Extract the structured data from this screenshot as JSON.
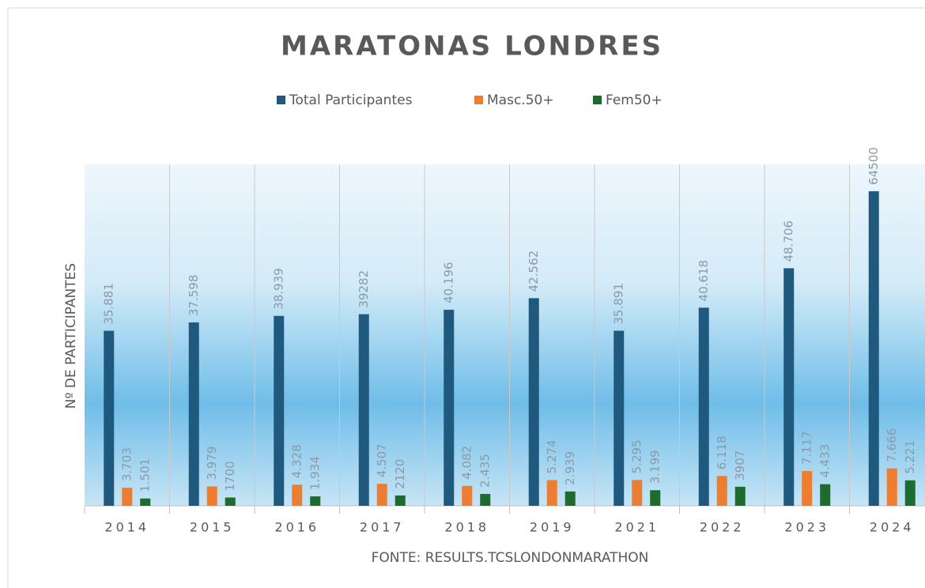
{
  "chart_data": {
    "type": "bar",
    "title": "MARATONAS LONDRES",
    "y_label": "Nº DE PARTICIPANTES",
    "source": "FONTE: RESULTS.TCSLONDONMARATHON",
    "categories": [
      "2014",
      "2015",
      "2016",
      "2017",
      "2018",
      "2019",
      "2021",
      "2022",
      "2023",
      "2024"
    ],
    "series": [
      {
        "name": "Total Participantes",
        "color": "#1f5a7e",
        "values": [
          35881,
          37598,
          38939,
          39282,
          40196,
          42562,
          35891,
          40618,
          48706,
          64500
        ],
        "value_labels": [
          "35.881",
          "37.598",
          "38.939",
          "39282",
          "40.196",
          "42.562",
          "35.891",
          "40.618",
          "48.706",
          "64500"
        ]
      },
      {
        "name": "Masc.50+",
        "color": "#ed7d31",
        "values": [
          3703,
          3979,
          4328,
          4507,
          4082,
          5274,
          5295,
          6118,
          7117,
          7666
        ],
        "value_labels": [
          "3.703",
          "3.979",
          "4.328",
          "4.507",
          "4.082",
          "5.274",
          "5.295",
          "6.118",
          "7.117",
          "7.666"
        ]
      },
      {
        "name": "Fem50+",
        "color": "#1e6b2e",
        "values": [
          1501,
          1700,
          1934,
          2120,
          2435,
          2939,
          3199,
          3907,
          4433,
          5221
        ],
        "value_labels": [
          "1.501",
          "1700",
          "1.934",
          "2120",
          "2.435",
          "2.939",
          "3.199",
          "3907",
          "4.433",
          "5.221"
        ]
      }
    ],
    "ylim": [
      0,
      70000
    ],
    "legend": "top"
  }
}
